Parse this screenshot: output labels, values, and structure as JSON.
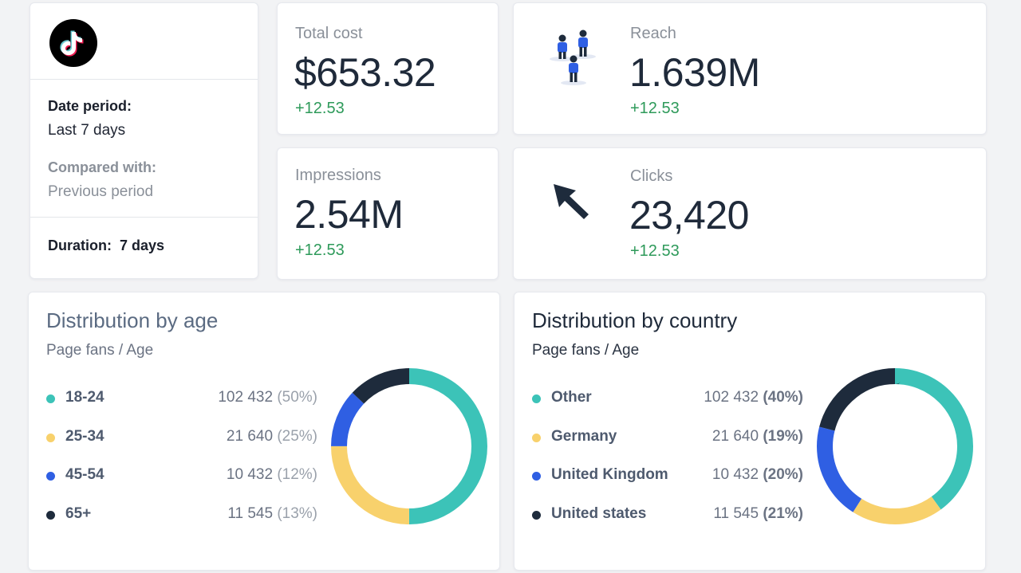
{
  "info": {
    "date_label": "Date period:",
    "date_value": "Last 7 days",
    "compared_label": "Compared with:",
    "compared_value": "Previous period",
    "duration_label": "Duration:",
    "duration_value": "7 days"
  },
  "metrics": {
    "cost": {
      "title": "Total cost",
      "value": "$653.32",
      "delta": "+12.53"
    },
    "reach": {
      "title": "Reach",
      "value": "1.639M",
      "delta": "+12.53"
    },
    "impressions": {
      "title": "Impressions",
      "value": "2.54M",
      "delta": "+12.53"
    },
    "clicks": {
      "title": "Clicks",
      "value": "23,420",
      "delta": "+12.53"
    }
  },
  "dist_age": {
    "title": "Distribution by age",
    "subtitle": "Page fans / Age",
    "items": [
      {
        "name": "18-24",
        "value": "102 432",
        "pct": "(50%)",
        "color": "#3cc3b8",
        "share": 50
      },
      {
        "name": "25-34",
        "value": "21 640",
        "pct": "(25%)",
        "color": "#f8d16c",
        "share": 25
      },
      {
        "name": "45-54",
        "value": "10 432",
        "pct": "(12%)",
        "color": "#2f5fe3",
        "share": 12
      },
      {
        "name": "65+",
        "value": "11 545",
        "pct": "(13%)",
        "color": "#1e2b3c",
        "share": 13
      }
    ]
  },
  "dist_country": {
    "title": "Distribution by country",
    "subtitle": "Page fans / Age",
    "items": [
      {
        "name": "Other",
        "value": "102 432",
        "pct": "(40%)",
        "color": "#3cc3b8",
        "share": 40
      },
      {
        "name": "Germany",
        "value": "21 640",
        "pct": "(19%)",
        "color": "#f8d16c",
        "share": 19
      },
      {
        "name": "United Kingdom",
        "value": "10 432",
        "pct": "(20%)",
        "color": "#2f5fe3",
        "share": 20
      },
      {
        "name": "United states",
        "value": "11 545",
        "pct": "(21%)",
        "color": "#1e2b3c",
        "share": 21
      }
    ]
  },
  "colors": {
    "positive": "#2e9a5a",
    "text_dark": "#1f2a3a",
    "text_gray": "#8a9099"
  },
  "icons": {
    "logo": "tiktok-logo",
    "reach": "people-icon",
    "clicks": "cursor-arrow-icon"
  }
}
